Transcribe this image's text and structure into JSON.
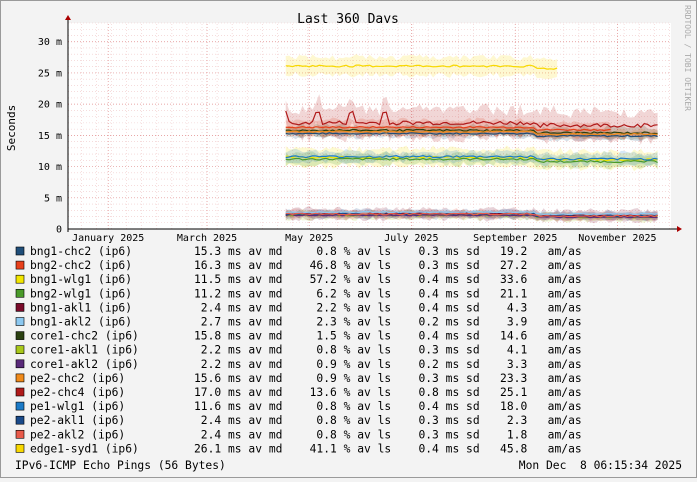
{
  "chart_data": {
    "type": "line",
    "title": "Last 360 Days",
    "ylabel": "Seconds",
    "watermark": "RRDTOOL / TOBI OETIKER",
    "ylim": [
      0,
      33
    ],
    "y_ticks": [
      "0",
      "5 m",
      "10 m",
      "15 m",
      "20 m",
      "25 m",
      "30 m"
    ],
    "y_tick_values": [
      0,
      5,
      10,
      15,
      20,
      25,
      30
    ],
    "x_ticks": [
      "January 2025",
      "March 2025",
      "May 2025",
      "July 2025",
      "September 2025",
      "November 2025"
    ],
    "grid": true,
    "series": [
      {
        "name": "bng1-chc2 (ip6)",
        "color": "#1f4e79",
        "mean_ms": 15.3,
        "loss_pct": 0.8,
        "sd_ms": 0.3,
        "am_as": 19.2,
        "stats": "15.3 ms av md     0.8 % av ls    0.3 ms sd   19.2   am/as"
      },
      {
        "name": "bng2-chc2 (ip6)",
        "color": "#e8401a",
        "mean_ms": 16.3,
        "loss_pct": 46.8,
        "sd_ms": 0.3,
        "am_as": 27.2,
        "stats": "16.3 ms av md    46.8 % av ls    0.3 ms sd   27.2   am/as"
      },
      {
        "name": "bng1-wlg1 (ip6)",
        "color": "#f2e600",
        "mean_ms": 11.5,
        "loss_pct": 57.2,
        "sd_ms": 0.4,
        "am_as": 33.6,
        "stats": "11.5 ms av md    57.2 % av ls    0.4 ms sd   33.6   am/as"
      },
      {
        "name": "bng2-wlg1 (ip6)",
        "color": "#4a9a2a",
        "mean_ms": 11.2,
        "loss_pct": 6.2,
        "sd_ms": 0.4,
        "am_as": 21.1,
        "stats": "11.2 ms av md     6.2 % av ls    0.4 ms sd   21.1   am/as"
      },
      {
        "name": "bng1-akl1 (ip6)",
        "color": "#7a0a2a",
        "mean_ms": 2.4,
        "loss_pct": 2.2,
        "sd_ms": 0.4,
        "am_as": 4.3,
        "stats": " 2.4 ms av md     2.2 % av ls    0.4 ms sd    4.3   am/as"
      },
      {
        "name": "bng1-akl2 (ip6)",
        "color": "#8cc8f0",
        "mean_ms": 2.7,
        "loss_pct": 2.3,
        "sd_ms": 0.2,
        "am_as": 3.9,
        "stats": " 2.7 ms av md     2.3 % av ls    0.2 ms sd    3.9   am/as"
      },
      {
        "name": "core1-chc2 (ip6)",
        "color": "#2a4010",
        "mean_ms": 15.8,
        "loss_pct": 1.5,
        "sd_ms": 0.4,
        "am_as": 14.6,
        "stats": "15.8 ms av md     1.5 % av ls    0.4 ms sd   14.6   am/as"
      },
      {
        "name": "core1-akl1 (ip6)",
        "color": "#a8c81a",
        "mean_ms": 2.2,
        "loss_pct": 0.8,
        "sd_ms": 0.3,
        "am_as": 4.1,
        "stats": " 2.2 ms av md     0.8 % av ls    0.3 ms sd    4.1   am/as"
      },
      {
        "name": "core1-akl2 (ip6)",
        "color": "#5a2a7a",
        "mean_ms": 2.2,
        "loss_pct": 0.9,
        "sd_ms": 0.2,
        "am_as": 3.3,
        "stats": " 2.2 ms av md     0.9 % av ls    0.2 ms sd    3.3   am/as"
      },
      {
        "name": "pe2-chc2 (ip6)",
        "color": "#f08a1a",
        "mean_ms": 15.6,
        "loss_pct": 0.9,
        "sd_ms": 0.3,
        "am_as": 23.3,
        "stats": "15.6 ms av md     0.9 % av ls    0.3 ms sd   23.3   am/as"
      },
      {
        "name": "pe2-chc4 (ip6)",
        "color": "#b01a1a",
        "mean_ms": 17.0,
        "loss_pct": 13.6,
        "sd_ms": 0.8,
        "am_as": 25.1,
        "stats": "17.0 ms av md    13.6 % av ls    0.8 ms sd   25.1   am/as"
      },
      {
        "name": "pe1-wlg1 (ip6)",
        "color": "#1a7ac8",
        "mean_ms": 11.6,
        "loss_pct": 0.8,
        "sd_ms": 0.4,
        "am_as": 18.0,
        "stats": "11.6 ms av md     0.8 % av ls    0.4 ms sd   18.0   am/as"
      },
      {
        "name": "pe2-akl1 (ip6)",
        "color": "#1a4a8a",
        "mean_ms": 2.4,
        "loss_pct": 0.8,
        "sd_ms": 0.3,
        "am_as": 2.3,
        "stats": " 2.4 ms av md     0.8 % av ls    0.3 ms sd    2.3   am/as"
      },
      {
        "name": "pe2-akl2 (ip6)",
        "color": "#e85a4a",
        "mean_ms": 2.4,
        "loss_pct": 0.8,
        "sd_ms": 0.3,
        "am_as": 1.8,
        "stats": " 2.4 ms av md     0.8 % av ls    0.3 ms sd    1.8   am/as"
      },
      {
        "name": "edge1-syd1 (ip6)",
        "color": "#f8d800",
        "mean_ms": 26.1,
        "loss_pct": 41.1,
        "sd_ms": 0.4,
        "am_as": 45.8,
        "stats": "26.1 ms av md    41.1 % av ls    0.4 ms sd   45.8   am/as"
      }
    ],
    "footer_left": "IPv6-ICMP Echo Pings (56 Bytes)",
    "footer_right": "Mon Dec  8 06:15:34 2025"
  }
}
